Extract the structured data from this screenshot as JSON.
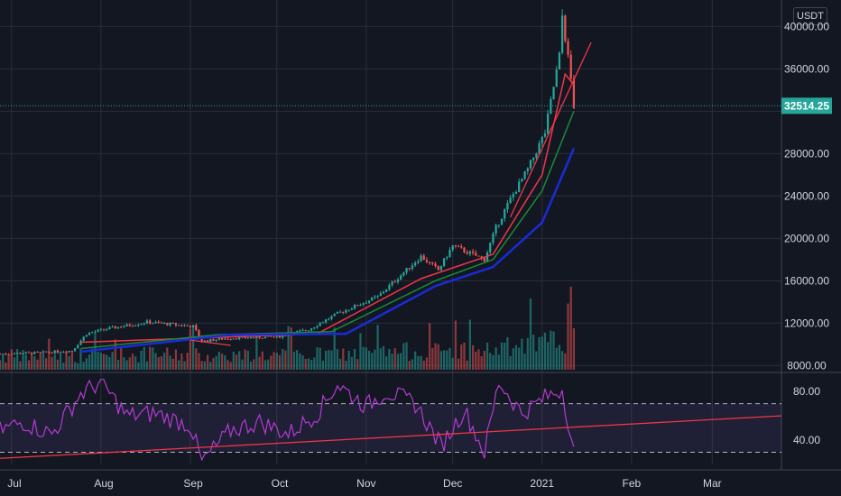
{
  "currency_label": "USDT",
  "colors": {
    "background": "#131722",
    "grid": "#2a2e39",
    "candle_up": "#26a69a",
    "candle_down": "#ef5350",
    "ma_fast": "#f23645",
    "ma_mid": "#1b8a3a",
    "ma_slow": "#1a2bd8",
    "rsi_line": "#b33bd1",
    "trend_line": "#f23645",
    "last_price_badge": "#26a69a"
  },
  "chart_data": [
    {
      "type": "candlestick",
      "title": "",
      "x_ticks": [
        "Jul",
        "Aug",
        "Sep",
        "Oct",
        "Nov",
        "Dec",
        "2021",
        "Feb",
        "Mar"
      ],
      "y_ticks": [
        "40000.00",
        "36000.00",
        "28000.00",
        "24000.00",
        "20000.00",
        "16000.00",
        "12000.00",
        "8000.00"
      ],
      "ylim": [
        7600,
        42500
      ],
      "last_price": "32514.25",
      "price_path": [
        [
          "2020-06-27",
          9100
        ],
        [
          "2020-07-10",
          9200
        ],
        [
          "2020-07-22",
          9400
        ],
        [
          "2020-07-27",
          11000
        ],
        [
          "2020-08-02",
          11400
        ],
        [
          "2020-08-17",
          12100
        ],
        [
          "2020-09-02",
          11700
        ],
        [
          "2020-09-05",
          10300
        ],
        [
          "2020-09-15",
          10600
        ],
        [
          "2020-10-01",
          10700
        ],
        [
          "2020-10-12",
          11400
        ],
        [
          "2020-10-22",
          12900
        ],
        [
          "2020-11-05",
          14500
        ],
        [
          "2020-11-20",
          18300
        ],
        [
          "2020-11-26",
          17000
        ],
        [
          "2020-12-01",
          19300
        ],
        [
          "2020-12-12",
          18000
        ],
        [
          "2020-12-16",
          21000
        ],
        [
          "2020-12-21",
          23700
        ],
        [
          "2020-12-27",
          26500
        ],
        [
          "2021-01-02",
          30000
        ],
        [
          "2021-01-07",
          37200
        ],
        [
          "2021-01-08",
          41000
        ],
        [
          "2021-01-11",
          35000
        ],
        [
          "2021-01-12",
          32514
        ]
      ],
      "moving_averages": [
        {
          "name": "",
          "color_key": "ma_fast",
          "path": [
            [
              "2020-07-25",
              10200
            ],
            [
              "2020-09-05",
              10600
            ],
            [
              "2020-10-15",
              11000
            ],
            [
              "2020-11-20",
              16200
            ],
            [
              "2020-12-15",
              18500
            ],
            [
              "2021-01-01",
              26000
            ],
            [
              "2021-01-09",
              35500
            ],
            [
              "2021-01-12",
              34500
            ]
          ]
        },
        {
          "name": "",
          "color_key": "ma_mid",
          "path": [
            [
              "2020-07-25",
              9600
            ],
            [
              "2020-09-10",
              10900
            ],
            [
              "2020-10-20",
              11200
            ],
            [
              "2020-11-25",
              16000
            ],
            [
              "2020-12-15",
              18000
            ],
            [
              "2021-01-01",
              24500
            ],
            [
              "2021-01-12",
              32000
            ]
          ]
        },
        {
          "name": "",
          "color_key": "ma_slow",
          "path": [
            [
              "2020-07-25",
              9300
            ],
            [
              "2020-09-15",
              10900
            ],
            [
              "2020-10-25",
              11000
            ],
            [
              "2020-11-25",
              15500
            ],
            [
              "2020-12-15",
              17300
            ],
            [
              "2021-01-01",
              21500
            ],
            [
              "2021-01-12",
              28500
            ]
          ]
        }
      ],
      "trend_lines": [
        {
          "from": [
            "2020-12-21",
            22000
          ],
          "to": [
            "2021-01-18",
            38500
          ]
        },
        {
          "from": [
            "2020-09-01",
            10400
          ],
          "to": [
            "2020-09-15",
            9900
          ]
        }
      ],
      "volume_max": 16000
    },
    {
      "type": "line",
      "title": "",
      "y_ticks": [
        "80.00",
        "40.00"
      ],
      "ylim": [
        20,
        92
      ],
      "bands": [
        70,
        30
      ],
      "rsi_path": [
        [
          "2020-06-27",
          48
        ],
        [
          "2020-07-05",
          55
        ],
        [
          "2020-07-15",
          45
        ],
        [
          "2020-07-25",
          78
        ],
        [
          "2020-08-01",
          88
        ],
        [
          "2020-08-10",
          60
        ],
        [
          "2020-08-20",
          62
        ],
        [
          "2020-09-01",
          52
        ],
        [
          "2020-09-05",
          22
        ],
        [
          "2020-09-15",
          48
        ],
        [
          "2020-09-25",
          55
        ],
        [
          "2020-10-05",
          45
        ],
        [
          "2020-10-15",
          62
        ],
        [
          "2020-10-22",
          86
        ],
        [
          "2020-11-01",
          68
        ],
        [
          "2020-11-08",
          80
        ],
        [
          "2020-11-18",
          70
        ],
        [
          "2020-11-27",
          35
        ],
        [
          "2020-12-05",
          65
        ],
        [
          "2020-12-12",
          30
        ],
        [
          "2020-12-17",
          88
        ],
        [
          "2020-12-25",
          62
        ],
        [
          "2021-01-02",
          75
        ],
        [
          "2021-01-08",
          82
        ],
        [
          "2021-01-12",
          30
        ]
      ],
      "trend_line": {
        "from": [
          "2020-06-27",
          25
        ],
        "to": [
          "2021-03-25",
          60
        ]
      }
    }
  ]
}
